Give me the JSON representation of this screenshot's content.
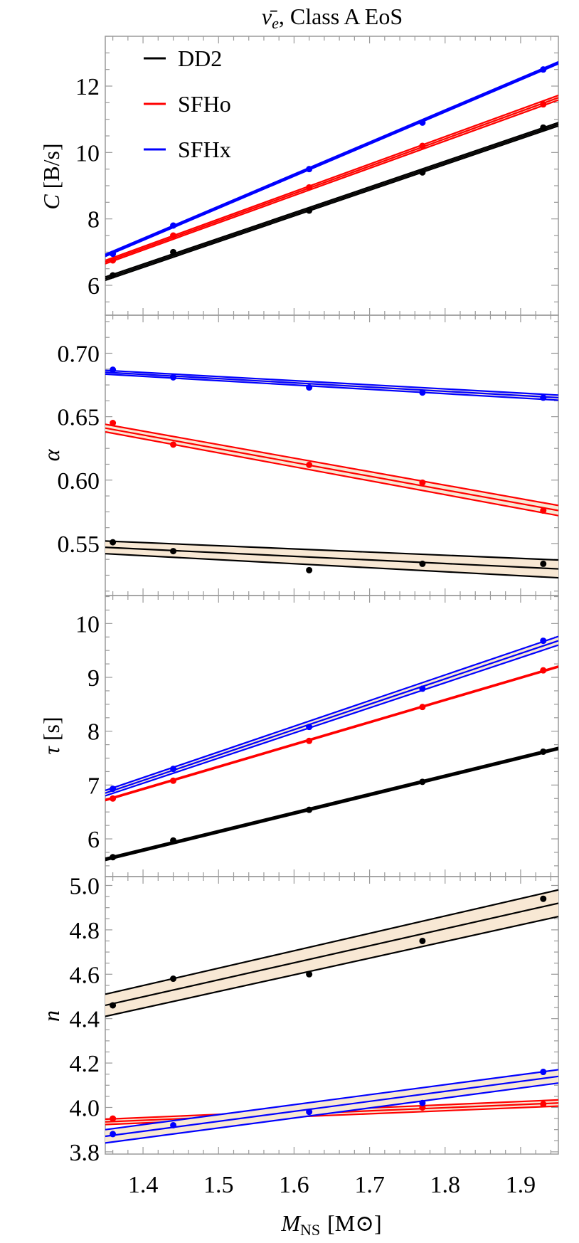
{
  "figure": {
    "title": "ν̄e, Class A EoS",
    "title_main": "ν̄",
    "title_sub": "e",
    "title_rest": ", Class A EoS",
    "xlabel_main": "M",
    "xlabel_sub": "NS",
    "xlabel_unit": "[M⊙]",
    "x_ticks": [
      "1.4",
      "1.5",
      "1.6",
      "1.7",
      "1.8",
      "1.9"
    ],
    "legend": [
      {
        "label": "DD2",
        "color": "#000000"
      },
      {
        "label": "SFHo",
        "color": "#ff0000"
      },
      {
        "label": "SFHx",
        "color": "#0000ff"
      }
    ],
    "band_fill": "#f8e8d4"
  },
  "chart_data": [
    {
      "type": "scatter",
      "title": "ν̄e, Class A EoS",
      "panel": "C",
      "xlabel": "M_NS [M_sun]",
      "ylabel": "C [B/s]",
      "xlim": [
        1.35,
        1.95
      ],
      "ylim": [
        5.1,
        13.5
      ],
      "yticks": [
        6,
        8,
        10,
        12
      ],
      "x": [
        1.36,
        1.44,
        1.62,
        1.77,
        1.93
      ],
      "series": [
        {
          "name": "DD2",
          "color": "#000000",
          "values": [
            6.3,
            7.0,
            8.25,
            9.4,
            10.75
          ],
          "fit": {
            "x": [
              1.35,
              1.95
            ],
            "center": [
              6.2,
              10.85
            ],
            "upper": [
              6.25,
              10.9
            ],
            "lower": [
              6.15,
              10.8
            ]
          }
        },
        {
          "name": "SFHo",
          "color": "#ff0000",
          "values": [
            6.75,
            7.5,
            8.95,
            10.2,
            11.45
          ],
          "fit": {
            "x": [
              1.35,
              1.95
            ],
            "center": [
              6.7,
              11.65
            ],
            "upper": [
              6.75,
              11.72
            ],
            "lower": [
              6.65,
              11.58
            ]
          }
        },
        {
          "name": "SFHx",
          "color": "#0000ff",
          "values": [
            6.95,
            7.8,
            9.5,
            10.9,
            12.5
          ],
          "fit": {
            "x": [
              1.35,
              1.95
            ],
            "center": [
              6.9,
              12.7
            ],
            "upper": [
              6.93,
              12.73
            ],
            "lower": [
              6.87,
              12.67
            ]
          }
        }
      ]
    },
    {
      "type": "scatter",
      "panel": "alpha",
      "xlabel": "M_NS [M_sun]",
      "ylabel": "α",
      "xlim": [
        1.35,
        1.95
      ],
      "ylim": [
        0.509,
        0.73
      ],
      "yticks": [
        0.55,
        0.6,
        0.65,
        0.7
      ],
      "x": [
        1.36,
        1.44,
        1.62,
        1.77,
        1.93
      ],
      "series": [
        {
          "name": "DD2",
          "color": "#000000",
          "values": [
            0.551,
            0.544,
            0.529,
            0.534,
            0.534
          ],
          "fit": {
            "x": [
              1.35,
              1.95
            ],
            "center": [
              0.547,
              0.53
            ],
            "upper": [
              0.552,
              0.537
            ],
            "lower": [
              0.542,
              0.523
            ]
          }
        },
        {
          "name": "SFHo",
          "color": "#ff0000",
          "values": [
            0.645,
            0.628,
            0.612,
            0.598,
            0.576
          ],
          "fit": {
            "x": [
              1.35,
              1.95
            ],
            "center": [
              0.641,
              0.576
            ],
            "upper": [
              0.644,
              0.58
            ],
            "lower": [
              0.638,
              0.572
            ]
          }
        },
        {
          "name": "SFHx",
          "color": "#0000ff",
          "values": [
            0.687,
            0.681,
            0.673,
            0.669,
            0.665
          ],
          "fit": {
            "x": [
              1.35,
              1.95
            ],
            "center": [
              0.685,
              0.665
            ],
            "upper": [
              0.6865,
              0.667
            ],
            "lower": [
              0.6835,
              0.663
            ]
          }
        }
      ]
    },
    {
      "type": "scatter",
      "panel": "tau",
      "xlabel": "M_NS [M_sun]",
      "ylabel": "τ [s]",
      "xlim": [
        1.35,
        1.95
      ],
      "ylim": [
        5.3,
        10.52
      ],
      "yticks": [
        6,
        7,
        8,
        9,
        10
      ],
      "x": [
        1.36,
        1.44,
        1.62,
        1.77,
        1.93
      ],
      "series": [
        {
          "name": "DD2",
          "color": "#000000",
          "values": [
            5.66,
            5.97,
            6.54,
            7.06,
            7.62
          ],
          "fit": {
            "x": [
              1.35,
              1.95
            ],
            "center": [
              5.62,
              7.68
            ],
            "upper": [
              5.64,
              7.7
            ],
            "lower": [
              5.6,
              7.66
            ]
          }
        },
        {
          "name": "SFHo",
          "color": "#ff0000",
          "values": [
            6.75,
            7.08,
            7.82,
            8.45,
            9.13
          ],
          "fit": {
            "x": [
              1.35,
              1.95
            ],
            "center": [
              6.72,
              9.2
            ],
            "upper": [
              6.73,
              9.21
            ],
            "lower": [
              6.71,
              9.19
            ]
          }
        },
        {
          "name": "SFHx",
          "color": "#0000ff",
          "values": [
            6.93,
            7.3,
            8.08,
            8.79,
            9.68
          ],
          "fit": {
            "x": [
              1.35,
              1.95
            ],
            "center": [
              6.85,
              9.68
            ],
            "upper": [
              6.9,
              9.76
            ],
            "lower": [
              6.8,
              9.6
            ]
          }
        }
      ]
    },
    {
      "type": "scatter",
      "panel": "n",
      "xlabel": "M_NS [M_sun]",
      "ylabel": "n",
      "xlim": [
        1.35,
        1.95
      ],
      "ylim": [
        3.79,
        5.04
      ],
      "yticks": [
        3.8,
        4.0,
        4.2,
        4.4,
        4.6,
        4.8,
        5.0
      ],
      "x": [
        1.36,
        1.44,
        1.62,
        1.77,
        1.93
      ],
      "series": [
        {
          "name": "DD2",
          "color": "#000000",
          "values": [
            4.46,
            4.58,
            4.6,
            4.75,
            4.94
          ],
          "fit": {
            "x": [
              1.35,
              1.95
            ],
            "center": [
              4.46,
              4.92
            ],
            "upper": [
              4.51,
              4.98
            ],
            "lower": [
              4.41,
              4.86
            ]
          }
        },
        {
          "name": "SFHo",
          "color": "#ff0000",
          "values": [
            3.95,
            3.93,
            3.975,
            4.0,
            4.015
          ],
          "fit": {
            "x": [
              1.35,
              1.95
            ],
            "center": [
              3.935,
              4.02
            ],
            "upper": [
              3.947,
              4.034
            ],
            "lower": [
              3.923,
              4.006
            ]
          }
        },
        {
          "name": "SFHx",
          "color": "#0000ff",
          "values": [
            3.88,
            3.92,
            3.98,
            4.02,
            4.16
          ],
          "fit": {
            "x": [
              1.35,
              1.95
            ],
            "center": [
              3.87,
              4.14
            ],
            "upper": [
              3.9,
              4.17
            ],
            "lower": [
              3.84,
              4.11
            ]
          }
        }
      ]
    }
  ],
  "panels": [
    {
      "ylabel_main": "C",
      "ylabel_unit": "[B/s]"
    },
    {
      "ylabel_main": "α",
      "ylabel_unit": ""
    },
    {
      "ylabel_main": "τ",
      "ylabel_unit": "[s]"
    },
    {
      "ylabel_main": "n",
      "ylabel_unit": ""
    }
  ]
}
